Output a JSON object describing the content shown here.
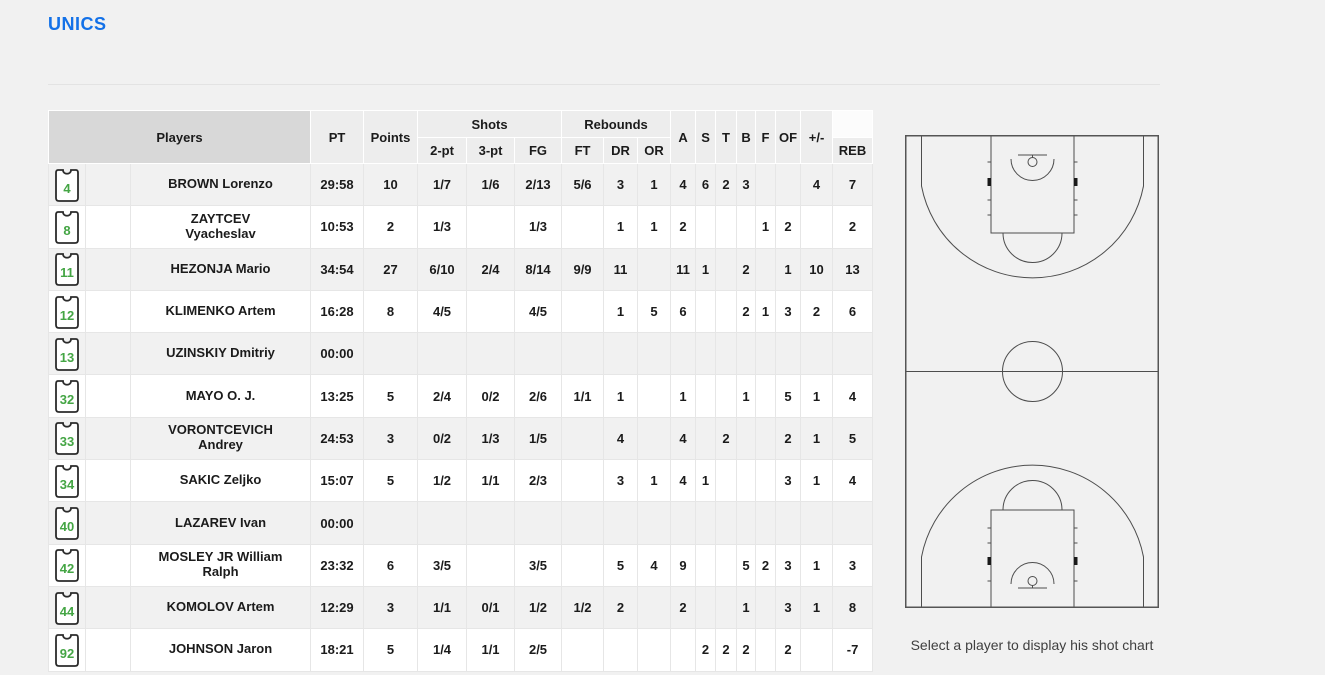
{
  "team": {
    "name": "UNICS"
  },
  "colors": {
    "title_blue": "#1371e8",
    "jersey_green": "#44a544",
    "court_line": "#4d4d4d"
  },
  "table": {
    "headers": {
      "players": "Players",
      "pt": "PT",
      "points": "Points",
      "shots": "Shots",
      "rebounds": "Rebounds",
      "p2": "2-pt",
      "p3": "3-pt",
      "fg": "FG",
      "ft": "FT",
      "dr": "DR",
      "or": "OR",
      "a": "A",
      "s": "S",
      "t": "T",
      "b": "B",
      "f": "F",
      "of": "OF",
      "pm": "+/-",
      "reb": "REB"
    },
    "stat_keys": [
      "pt",
      "points",
      "p2",
      "p3",
      "fg",
      "ft",
      "dr",
      "or",
      "a",
      "s",
      "t",
      "b",
      "f",
      "of",
      "pm",
      "reb"
    ],
    "players": [
      {
        "number": "4",
        "name": "BROWN Lorenzo",
        "pt": "29:58",
        "points": "10",
        "p2": "1/7",
        "p3": "1/6",
        "fg": "2/13",
        "ft": "5/6",
        "dr": "3",
        "or": "1",
        "a": "4",
        "s": "6",
        "t": "2",
        "b": "3",
        "f": "",
        "of": "",
        "pm": "4",
        "reb": "7"
      },
      {
        "number": "8",
        "name": "ZAYTCEV\nVyacheslav",
        "pt": "10:53",
        "points": "2",
        "p2": "1/3",
        "p3": "",
        "fg": "1/3",
        "ft": "",
        "dr": "1",
        "or": "1",
        "a": "2",
        "s": "",
        "t": "",
        "b": "",
        "f": "1",
        "of": "2",
        "pm": "",
        "reb": "2"
      },
      {
        "number": "11",
        "name": "HEZONJA Mario",
        "pt": "34:54",
        "points": "27",
        "p2": "6/10",
        "p3": "2/4",
        "fg": "8/14",
        "ft": "9/9",
        "dr": "11",
        "or": "",
        "a": "11",
        "s": "1",
        "t": "",
        "b": "2",
        "f": "",
        "of": "1",
        "pm": "10",
        "reb": "13"
      },
      {
        "number": "12",
        "name": "KLIMENKO Artem",
        "pt": "16:28",
        "points": "8",
        "p2": "4/5",
        "p3": "",
        "fg": "4/5",
        "ft": "",
        "dr": "1",
        "or": "5",
        "a": "6",
        "s": "",
        "t": "",
        "b": "2",
        "f": "1",
        "of": "3",
        "pm": "2",
        "reb": "6"
      },
      {
        "number": "13",
        "name": "UZINSKIY Dmitriy",
        "pt": "00:00",
        "points": "",
        "p2": "",
        "p3": "",
        "fg": "",
        "ft": "",
        "dr": "",
        "or": "",
        "a": "",
        "s": "",
        "t": "",
        "b": "",
        "f": "",
        "of": "",
        "pm": "",
        "reb": ""
      },
      {
        "number": "32",
        "name": "MAYO O. J.",
        "pt": "13:25",
        "points": "5",
        "p2": "2/4",
        "p3": "0/2",
        "fg": "2/6",
        "ft": "1/1",
        "dr": "1",
        "or": "",
        "a": "1",
        "s": "",
        "t": "",
        "b": "1",
        "f": "",
        "of": "5",
        "pm": "1",
        "reb": "4"
      },
      {
        "number": "33",
        "name": "VORONTCEVICH\nAndrey",
        "pt": "24:53",
        "points": "3",
        "p2": "0/2",
        "p3": "1/3",
        "fg": "1/5",
        "ft": "",
        "dr": "4",
        "or": "",
        "a": "4",
        "s": "",
        "t": "2",
        "b": "",
        "f": "",
        "of": "2",
        "pm": "1",
        "reb": "5"
      },
      {
        "number": "34",
        "name": "SAKIC Zeljko",
        "pt": "15:07",
        "points": "5",
        "p2": "1/2",
        "p3": "1/1",
        "fg": "2/3",
        "ft": "",
        "dr": "3",
        "or": "1",
        "a": "4",
        "s": "1",
        "t": "",
        "b": "",
        "f": "",
        "of": "3",
        "pm": "1",
        "reb": "4"
      },
      {
        "number": "40",
        "name": "LAZAREV Ivan",
        "pt": "00:00",
        "points": "",
        "p2": "",
        "p3": "",
        "fg": "",
        "ft": "",
        "dr": "",
        "or": "",
        "a": "",
        "s": "",
        "t": "",
        "b": "",
        "f": "",
        "of": "",
        "pm": "",
        "reb": ""
      },
      {
        "number": "42",
        "name": "MOSLEY JR William\nRalph",
        "pt": "23:32",
        "points": "6",
        "p2": "3/5",
        "p3": "",
        "fg": "3/5",
        "ft": "",
        "dr": "5",
        "or": "4",
        "a": "9",
        "s": "",
        "t": "",
        "b": "5",
        "f": "2",
        "of": "3",
        "pm": "1",
        "reb": "3"
      },
      {
        "number": "44",
        "name": "KOMOLOV Artem",
        "pt": "12:29",
        "points": "3",
        "p2": "1/1",
        "p3": "0/1",
        "fg": "1/2",
        "ft": "1/2",
        "dr": "2",
        "or": "",
        "a": "2",
        "s": "",
        "t": "",
        "b": "1",
        "f": "",
        "of": "3",
        "pm": "1",
        "reb": "8"
      },
      {
        "number": "92",
        "name": "JOHNSON Jaron",
        "pt": "18:21",
        "points": "5",
        "p2": "1/4",
        "p3": "1/1",
        "fg": "2/5",
        "ft": "",
        "dr": "",
        "or": "",
        "a": "",
        "s": "2",
        "t": "2",
        "b": "2",
        "f": "",
        "of": "2",
        "pm": "",
        "reb": "-7"
      }
    ]
  },
  "shot_chart": {
    "caption": "Select a player to display his shot chart"
  }
}
